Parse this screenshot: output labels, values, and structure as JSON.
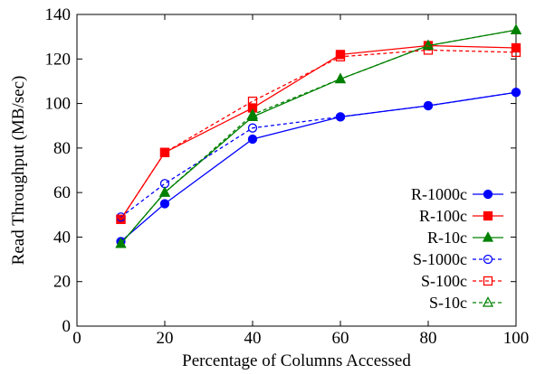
{
  "chart_data": {
    "type": "line",
    "title": "",
    "xlabel": "Percentage of Columns Accessed",
    "ylabel": "Read Throughput (MB/sec)",
    "xlim": [
      0,
      100
    ],
    "ylim": [
      0,
      140
    ],
    "xticks": [
      0,
      20,
      40,
      60,
      80,
      100
    ],
    "yticks": [
      0,
      20,
      40,
      60,
      80,
      100,
      120,
      140
    ],
    "grid": false,
    "legend_position": "bottom-right",
    "series": [
      {
        "name": "R-1000c",
        "color": "#0000ff",
        "dash": "solid",
        "marker": "circle",
        "filled": true,
        "x": [
          10,
          20,
          40,
          60,
          80,
          100
        ],
        "y": [
          38,
          55,
          84,
          94,
          99,
          105
        ]
      },
      {
        "name": "R-100c",
        "color": "#ff0000",
        "dash": "solid",
        "marker": "square",
        "filled": true,
        "x": [
          10,
          20,
          40,
          60,
          80,
          100
        ],
        "y": [
          48,
          78,
          98,
          122,
          126,
          125
        ]
      },
      {
        "name": "R-10c",
        "color": "#008000",
        "dash": "solid",
        "marker": "triangle",
        "filled": true,
        "x": [
          10,
          20,
          40,
          60,
          80,
          100
        ],
        "y": [
          37,
          60,
          94,
          111,
          126,
          133
        ]
      },
      {
        "name": "S-1000c",
        "color": "#0000ff",
        "dash": "dashed",
        "marker": "circle",
        "filled": false,
        "x": [
          10,
          20,
          40,
          60,
          80,
          100
        ],
        "y": [
          49,
          64,
          89,
          94,
          99,
          105
        ]
      },
      {
        "name": "S-100c",
        "color": "#ff0000",
        "dash": "dashed",
        "marker": "square",
        "filled": false,
        "x": [
          10,
          20,
          40,
          60,
          80,
          100
        ],
        "y": [
          48,
          78,
          101,
          121,
          124,
          123
        ]
      },
      {
        "name": "S-10c",
        "color": "#008000",
        "dash": "dashed",
        "marker": "triangle",
        "filled": false,
        "x": [
          10,
          20,
          40,
          60,
          80,
          100
        ],
        "y": [
          37,
          60,
          95,
          111,
          126,
          133
        ]
      }
    ]
  }
}
